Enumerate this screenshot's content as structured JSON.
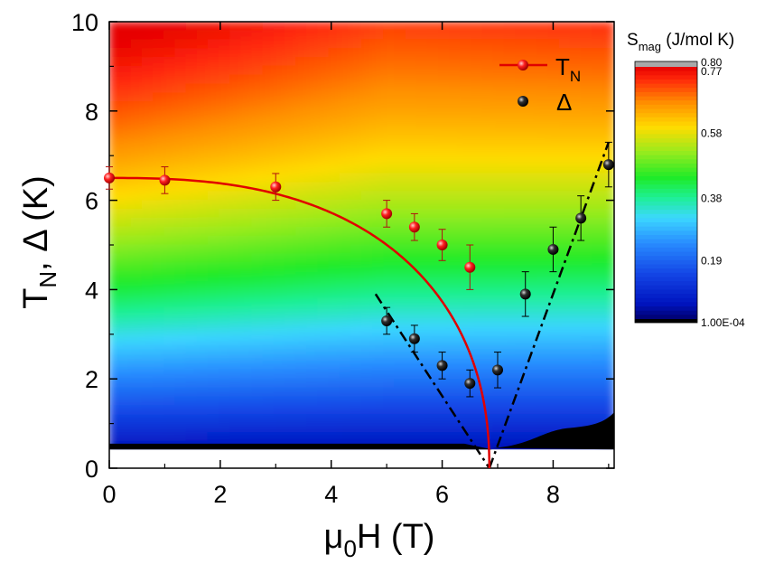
{
  "chart_data": [
    {
      "type": "heatmap",
      "xlabel": "μ0H (T)",
      "ylabel": "TN, Δ (K)",
      "xlim": [
        0,
        9.1
      ],
      "ylim": [
        0,
        10
      ],
      "x_ticks": [
        "0",
        "2",
        "4",
        "6",
        "8"
      ],
      "y_ticks": [
        "0",
        "2",
        "4",
        "6",
        "8",
        "10"
      ],
      "colorbar": {
        "title": "Smag (J/mol K)",
        "title_parts": [
          "S",
          "mag",
          " (J/mol K)"
        ],
        "min": 0.0001,
        "max": 0.8,
        "tick_labels": [
          "0.80",
          "0.77",
          "0.58",
          "0.38",
          "0.19",
          "1.00E-04"
        ],
        "tick_values": [
          0.8,
          0.77,
          0.58,
          0.38,
          0.19,
          0.0001
        ],
        "colors": [
          "#000000",
          "#0000a0",
          "#1030e0",
          "#2a7aff",
          "#3fd0ff",
          "#12ee55",
          "#9aee20",
          "#ffd000",
          "#ff8000",
          "#ff2010",
          "#e80000",
          "#a8a8a8"
        ]
      },
      "series": [
        {
          "name": "TN",
          "name_parts": [
            "T",
            "N"
          ],
          "kind": "scatter-with-fit",
          "color": "#ff0000",
          "x": [
            0,
            1,
            3,
            5,
            5.5,
            6,
            6.5
          ],
          "y": [
            6.5,
            6.45,
            6.3,
            5.7,
            5.4,
            5.0,
            4.5
          ],
          "yerr": [
            0.25,
            0.3,
            0.3,
            0.3,
            0.3,
            0.35,
            0.5
          ],
          "fit": {
            "line_style": "solid",
            "Tc": 6.5,
            "Hc": 6.85
          }
        },
        {
          "name": "Δ",
          "kind": "scatter",
          "color": "#000000",
          "x": [
            5,
            5.5,
            6,
            6.5,
            7,
            7.5,
            8,
            8.5,
            9
          ],
          "y": [
            3.3,
            2.9,
            2.3,
            1.9,
            2.2,
            3.9,
            4.9,
            5.6,
            6.8
          ],
          "yerr": [
            0.3,
            0.3,
            0.3,
            0.3,
            0.4,
            0.5,
            0.5,
            0.5,
            0.5
          ]
        }
      ],
      "guide_lines": [
        {
          "style": "dash-dot",
          "color": "#000000",
          "x": [
            4.8,
            6.85
          ],
          "y": [
            3.9,
            0
          ]
        },
        {
          "style": "dash-dot",
          "color": "#000000",
          "x": [
            6.85,
            9.0
          ],
          "y": [
            0,
            7.3
          ]
        }
      ],
      "legend": {
        "placement": "top-right"
      },
      "grid": false
    }
  ]
}
